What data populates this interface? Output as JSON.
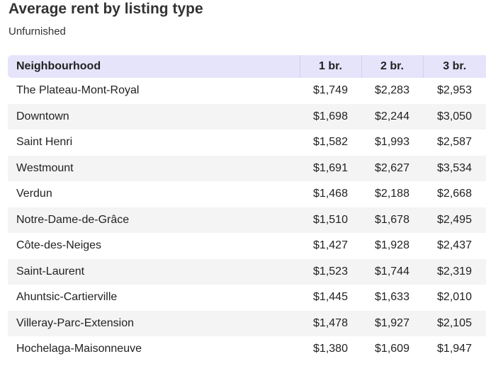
{
  "title": "Average rent by listing type",
  "subtitle": "Unfurnished",
  "chart_data": {
    "type": "table",
    "title": "Average rent by listing type",
    "subtitle": "Unfurnished",
    "columns": [
      "Neighbourhood",
      "1 br.",
      "2 br.",
      "3 br."
    ],
    "rows": [
      [
        "The Plateau-Mont-Royal",
        "$1,749",
        "$2,283",
        "$2,953"
      ],
      [
        "Downtown",
        "$1,698",
        "$2,244",
        "$3,050"
      ],
      [
        "Saint Henri",
        "$1,582",
        "$1,993",
        "$2,587"
      ],
      [
        "Westmount",
        "$1,691",
        "$2,627",
        "$3,534"
      ],
      [
        "Verdun",
        "$1,468",
        "$2,188",
        "$2,668"
      ],
      [
        "Notre-Dame-de-Grâce",
        "$1,510",
        "$1,678",
        "$2,495"
      ],
      [
        "Côte-des-Neiges",
        "$1,427",
        "$1,928",
        "$2,437"
      ],
      [
        "Saint-Laurent",
        "$1,523",
        "$1,744",
        "$2,319"
      ],
      [
        "Ahuntsic-Cartierville",
        "$1,445",
        "$1,633",
        "$2,010"
      ],
      [
        "Villeray-Parc-Extension",
        "$1,478",
        "$1,927",
        "$2,105"
      ],
      [
        "Hochelaga-Maisonneuve",
        "$1,380",
        "$1,609",
        "$1,947"
      ]
    ]
  },
  "colors": {
    "header_bg": "#e5e4fb",
    "stripe_bg": "#f4f4f4"
  }
}
